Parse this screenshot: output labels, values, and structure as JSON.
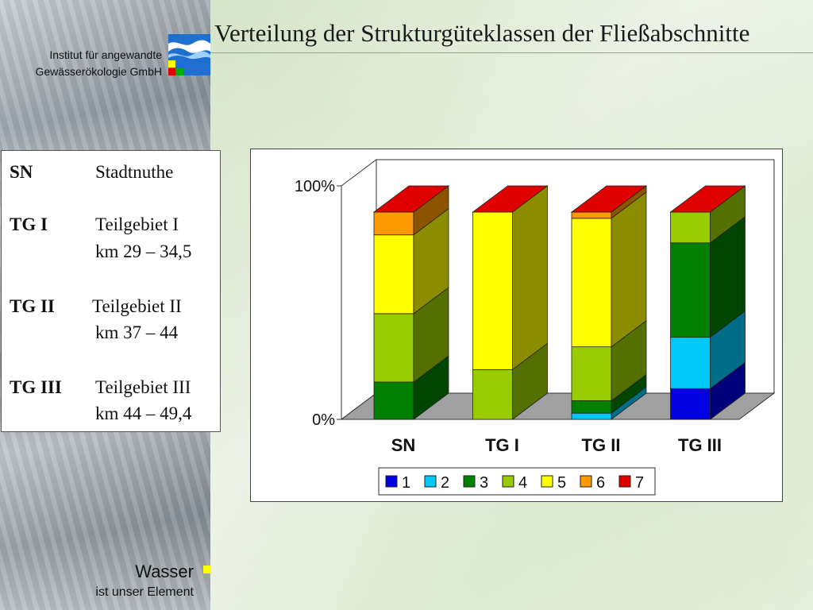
{
  "page": {
    "title": "Verteilung der Strukturgüteklassen der Fließabschnitte",
    "institute_line1": "Institut für angewandte",
    "institute_line2": "Gewässerökologie GmbH",
    "footer_main": "Wasser",
    "footer_sub": "ist unser Element"
  },
  "legend_box": {
    "entries": [
      {
        "abbr": "SN",
        "lines": [
          "Stadtnuthe"
        ]
      },
      {
        "abbr": "TG I",
        "lines": [
          "Teilgebiet I",
          "km 29 – 34,5"
        ]
      },
      {
        "abbr": "TG II",
        "lines": [
          "Teilgebiet II",
          "km 37 – 44"
        ]
      },
      {
        "abbr": "TG III",
        "lines": [
          "Teilgebiet III",
          "km 44 – 49,4"
        ]
      }
    ]
  },
  "chart_data": {
    "type": "bar",
    "stacked": "percent",
    "three_d": true,
    "categories": [
      "SN",
      "TG I",
      "TG II",
      "TG III"
    ],
    "y_ticks": [
      "0%",
      "100%"
    ],
    "ylim": [
      0,
      100
    ],
    "legend_position": "bottom",
    "series": [
      {
        "name": "1",
        "color": "#0000e0",
        "values": [
          0,
          0,
          0,
          15
        ]
      },
      {
        "name": "2",
        "color": "#00c8f8",
        "values": [
          0,
          0,
          3,
          25
        ]
      },
      {
        "name": "3",
        "color": "#008000",
        "values": [
          18,
          0,
          6,
          46
        ]
      },
      {
        "name": "4",
        "color": "#99cc00",
        "values": [
          33,
          24,
          26,
          15
        ]
      },
      {
        "name": "5",
        "color": "#ffff00",
        "values": [
          38,
          76,
          62,
          0
        ]
      },
      {
        "name": "6",
        "color": "#ff9900",
        "values": [
          11,
          0,
          3,
          0
        ]
      },
      {
        "name": "7",
        "color": "#e00000",
        "values": [
          0,
          0,
          0,
          0
        ]
      }
    ],
    "top_cap_color": "#e00000"
  }
}
